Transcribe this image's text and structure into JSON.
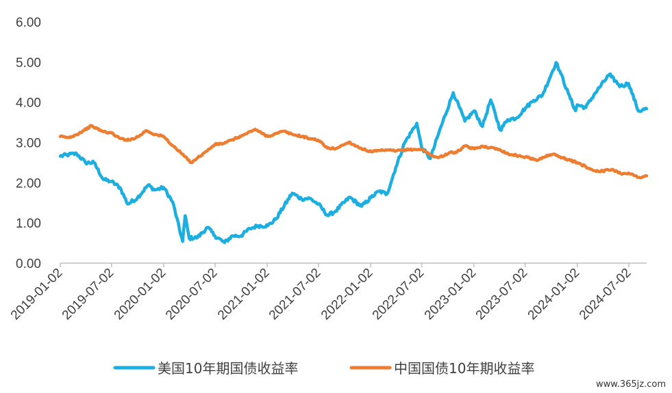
{
  "chart_data": {
    "type": "line",
    "title": "",
    "xlabel": "",
    "ylabel": "",
    "ylim": [
      0,
      6
    ],
    "y_ticks": [
      "0.00",
      "1.00",
      "2.00",
      "3.00",
      "4.00",
      "5.00",
      "6.00"
    ],
    "x_tick_labels": [
      "2019-01-02",
      "2019-07-02",
      "2020-01-02",
      "2020-07-02",
      "2021-01-02",
      "2021-07-02",
      "2022-01-02",
      "2022-07-02",
      "2023-01-02",
      "2023-07-02",
      "2024-01-02",
      "2024-07-02"
    ],
    "grid": false,
    "legend_position": "bottom",
    "series": [
      {
        "name": "美国10年期国债收益率",
        "color": "#1AAFE0",
        "points": [
          [
            "2019-01-02",
            2.66
          ],
          [
            "2019-02-01",
            2.7
          ],
          [
            "2019-03-01",
            2.72
          ],
          [
            "2019-04-01",
            2.5
          ],
          [
            "2019-05-01",
            2.5
          ],
          [
            "2019-06-03",
            2.08
          ],
          [
            "2019-07-01",
            2.03
          ],
          [
            "2019-08-01",
            1.88
          ],
          [
            "2019-08-28",
            1.47
          ],
          [
            "2019-10-01",
            1.62
          ],
          [
            "2019-11-08",
            1.94
          ],
          [
            "2019-12-02",
            1.82
          ],
          [
            "2020-01-02",
            1.88
          ],
          [
            "2020-02-03",
            1.52
          ],
          [
            "2020-03-09",
            0.54
          ],
          [
            "2020-03-18",
            1.18
          ],
          [
            "2020-04-01",
            0.62
          ],
          [
            "2020-05-01",
            0.64
          ],
          [
            "2020-06-05",
            0.89
          ],
          [
            "2020-07-01",
            0.68
          ],
          [
            "2020-08-04",
            0.51
          ],
          [
            "2020-09-01",
            0.68
          ],
          [
            "2020-10-01",
            0.68
          ],
          [
            "2020-11-02",
            0.86
          ],
          [
            "2020-12-01",
            0.93
          ],
          [
            "2021-01-04",
            0.93
          ],
          [
            "2021-02-01",
            1.09
          ],
          [
            "2021-03-31",
            1.74
          ],
          [
            "2021-05-03",
            1.6
          ],
          [
            "2021-06-01",
            1.61
          ],
          [
            "2021-07-01",
            1.47
          ],
          [
            "2021-08-04",
            1.18
          ],
          [
            "2021-09-01",
            1.3
          ],
          [
            "2021-10-20",
            1.64
          ],
          [
            "2021-12-01",
            1.41
          ],
          [
            "2022-01-03",
            1.63
          ],
          [
            "2022-02-01",
            1.79
          ],
          [
            "2022-03-01",
            1.72
          ],
          [
            "2022-04-01",
            2.38
          ],
          [
            "2022-05-02",
            2.99
          ],
          [
            "2022-06-14",
            3.48
          ],
          [
            "2022-07-01",
            2.88
          ],
          [
            "2022-08-01",
            2.6
          ],
          [
            "2022-09-01",
            3.26
          ],
          [
            "2022-10-21",
            4.24
          ],
          [
            "2022-11-01",
            4.05
          ],
          [
            "2022-12-01",
            3.53
          ],
          [
            "2023-01-03",
            3.79
          ],
          [
            "2023-02-01",
            3.4
          ],
          [
            "2023-03-02",
            4.06
          ],
          [
            "2023-04-05",
            3.31
          ],
          [
            "2023-05-01",
            3.57
          ],
          [
            "2023-06-01",
            3.61
          ],
          [
            "2023-07-03",
            3.86
          ],
          [
            "2023-08-01",
            4.05
          ],
          [
            "2023-09-01",
            4.18
          ],
          [
            "2023-10-19",
            4.99
          ],
          [
            "2023-11-01",
            4.78
          ],
          [
            "2023-12-01",
            4.22
          ],
          [
            "2023-12-27",
            3.79
          ],
          [
            "2024-01-02",
            3.94
          ],
          [
            "2024-02-01",
            3.87
          ],
          [
            "2024-03-01",
            4.19
          ],
          [
            "2024-04-25",
            4.7
          ],
          [
            "2024-05-01",
            4.63
          ],
          [
            "2024-06-03",
            4.4
          ],
          [
            "2024-07-01",
            4.47
          ],
          [
            "2024-08-05",
            3.78
          ],
          [
            "2024-09-03",
            3.84
          ]
        ]
      },
      {
        "name": "中国国债10年期收益率",
        "color": "#ED7D31",
        "points": [
          [
            "2019-01-02",
            3.15
          ],
          [
            "2019-02-01",
            3.12
          ],
          [
            "2019-03-01",
            3.2
          ],
          [
            "2019-04-24",
            3.42
          ],
          [
            "2019-05-01",
            3.38
          ],
          [
            "2019-06-03",
            3.27
          ],
          [
            "2019-07-01",
            3.24
          ],
          [
            "2019-08-01",
            3.1
          ],
          [
            "2019-09-02",
            3.06
          ],
          [
            "2019-10-08",
            3.16
          ],
          [
            "2019-11-01",
            3.3
          ],
          [
            "2019-12-02",
            3.2
          ],
          [
            "2020-01-02",
            3.15
          ],
          [
            "2020-02-03",
            2.92
          ],
          [
            "2020-03-02",
            2.75
          ],
          [
            "2020-04-08",
            2.5
          ],
          [
            "2020-05-01",
            2.62
          ],
          [
            "2020-06-01",
            2.78
          ],
          [
            "2020-07-01",
            2.95
          ],
          [
            "2020-08-03",
            2.98
          ],
          [
            "2020-09-01",
            3.07
          ],
          [
            "2020-10-09",
            3.18
          ],
          [
            "2020-11-20",
            3.33
          ],
          [
            "2020-12-01",
            3.28
          ],
          [
            "2021-01-04",
            3.15
          ],
          [
            "2021-02-01",
            3.22
          ],
          [
            "2021-03-01",
            3.28
          ],
          [
            "2021-04-01",
            3.2
          ],
          [
            "2021-05-06",
            3.15
          ],
          [
            "2021-06-01",
            3.1
          ],
          [
            "2021-07-01",
            3.06
          ],
          [
            "2021-08-02",
            2.86
          ],
          [
            "2021-09-01",
            2.85
          ],
          [
            "2021-10-18",
            3.01
          ],
          [
            "2021-11-01",
            2.95
          ],
          [
            "2021-12-01",
            2.85
          ],
          [
            "2022-01-04",
            2.77
          ],
          [
            "2022-02-07",
            2.8
          ],
          [
            "2022-03-01",
            2.81
          ],
          [
            "2022-04-01",
            2.79
          ],
          [
            "2022-05-05",
            2.82
          ],
          [
            "2022-06-20",
            2.83
          ],
          [
            "2022-07-01",
            2.83
          ],
          [
            "2022-08-15",
            2.64
          ],
          [
            "2022-09-01",
            2.63
          ],
          [
            "2022-10-10",
            2.75
          ],
          [
            "2022-11-01",
            2.75
          ],
          [
            "2022-12-01",
            2.91
          ],
          [
            "2023-01-03",
            2.84
          ],
          [
            "2023-02-01",
            2.91
          ],
          [
            "2023-03-01",
            2.87
          ],
          [
            "2023-04-03",
            2.83
          ],
          [
            "2023-05-04",
            2.71
          ],
          [
            "2023-06-01",
            2.68
          ],
          [
            "2023-07-03",
            2.64
          ],
          [
            "2023-08-15",
            2.56
          ],
          [
            "2023-09-01",
            2.63
          ],
          [
            "2023-10-09",
            2.71
          ],
          [
            "2023-11-01",
            2.65
          ],
          [
            "2023-12-01",
            2.57
          ],
          [
            "2024-01-02",
            2.5
          ],
          [
            "2024-02-01",
            2.4
          ],
          [
            "2024-03-01",
            2.3
          ],
          [
            "2024-04-01",
            2.29
          ],
          [
            "2024-05-06",
            2.33
          ],
          [
            "2024-06-03",
            2.23
          ],
          [
            "2024-07-01",
            2.24
          ],
          [
            "2024-08-05",
            2.13
          ],
          [
            "2024-09-03",
            2.17
          ]
        ]
      }
    ]
  },
  "watermark": "www.365jz.com"
}
